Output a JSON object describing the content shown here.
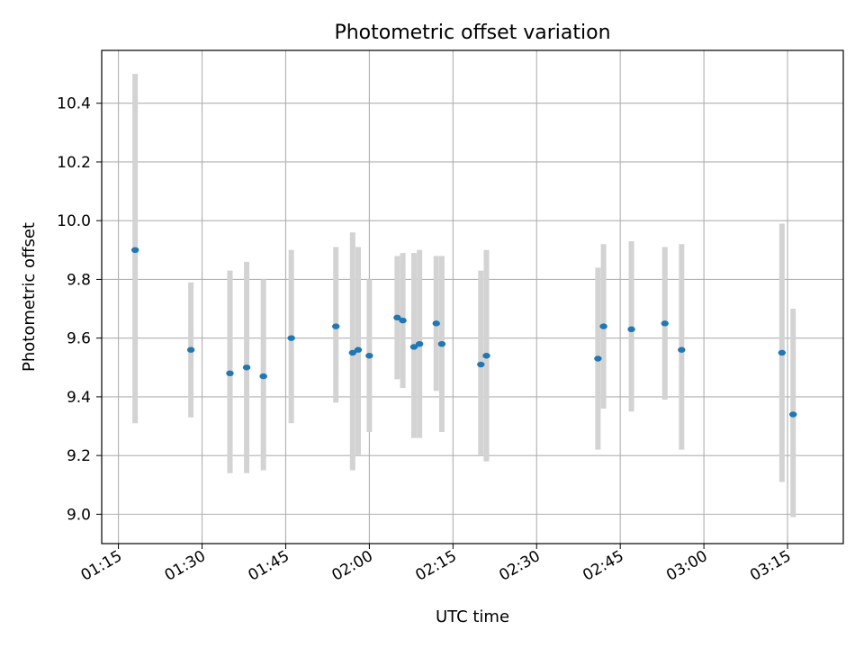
{
  "chart_data": {
    "type": "scatter",
    "title": "Photometric offset variation",
    "xlabel": "UTC time",
    "ylabel": "Photometric offset",
    "x_ticks": [
      "01:15",
      "01:30",
      "01:45",
      "02:00",
      "02:15",
      "02:30",
      "02:45",
      "03:00",
      "03:15"
    ],
    "y_ticks": [
      "9.0",
      "9.2",
      "9.4",
      "9.6",
      "9.8",
      "10.0",
      "10.2",
      "10.4"
    ],
    "xlim": [
      "01:12",
      "03:25"
    ],
    "ylim": [
      8.9,
      10.58
    ],
    "grid": true,
    "colors": {
      "point": "#1f77b4",
      "errorbar": "#d3d3d3",
      "grid": "#b0b0b0"
    },
    "points": [
      {
        "x": "01:18",
        "y": 9.9,
        "ylow": 9.31,
        "yhigh": 10.5
      },
      {
        "x": "01:28",
        "y": 9.56,
        "ylow": 9.33,
        "yhigh": 9.79
      },
      {
        "x": "01:35",
        "y": 9.48,
        "ylow": 9.14,
        "yhigh": 9.83
      },
      {
        "x": "01:38",
        "y": 9.5,
        "ylow": 9.14,
        "yhigh": 9.86
      },
      {
        "x": "01:41",
        "y": 9.47,
        "ylow": 9.15,
        "yhigh": 9.8
      },
      {
        "x": "01:46",
        "y": 9.6,
        "ylow": 9.31,
        "yhigh": 9.9
      },
      {
        "x": "01:54",
        "y": 9.64,
        "ylow": 9.38,
        "yhigh": 9.91
      },
      {
        "x": "01:57",
        "y": 9.55,
        "ylow": 9.15,
        "yhigh": 9.96
      },
      {
        "x": "01:58",
        "y": 9.56,
        "ylow": 9.2,
        "yhigh": 9.91
      },
      {
        "x": "02:00",
        "y": 9.54,
        "ylow": 9.28,
        "yhigh": 9.8
      },
      {
        "x": "02:05",
        "y": 9.67,
        "ylow": 9.46,
        "yhigh": 9.88
      },
      {
        "x": "02:06",
        "y": 9.66,
        "ylow": 9.43,
        "yhigh": 9.89
      },
      {
        "x": "02:08",
        "y": 9.57,
        "ylow": 9.26,
        "yhigh": 9.89
      },
      {
        "x": "02:09",
        "y": 9.58,
        "ylow": 9.26,
        "yhigh": 9.9
      },
      {
        "x": "02:12",
        "y": 9.65,
        "ylow": 9.42,
        "yhigh": 9.88
      },
      {
        "x": "02:13",
        "y": 9.58,
        "ylow": 9.28,
        "yhigh": 9.88
      },
      {
        "x": "02:20",
        "y": 9.51,
        "ylow": 9.2,
        "yhigh": 9.83
      },
      {
        "x": "02:21",
        "y": 9.54,
        "ylow": 9.18,
        "yhigh": 9.9
      },
      {
        "x": "02:41",
        "y": 9.53,
        "ylow": 9.22,
        "yhigh": 9.84
      },
      {
        "x": "02:42",
        "y": 9.64,
        "ylow": 9.36,
        "yhigh": 9.92
      },
      {
        "x": "02:47",
        "y": 9.63,
        "ylow": 9.35,
        "yhigh": 9.93
      },
      {
        "x": "02:53",
        "y": 9.65,
        "ylow": 9.39,
        "yhigh": 9.91
      },
      {
        "x": "02:56",
        "y": 9.56,
        "ylow": 9.22,
        "yhigh": 9.92
      },
      {
        "x": "03:14",
        "y": 9.55,
        "ylow": 9.11,
        "yhigh": 9.99
      },
      {
        "x": "03:16",
        "y": 9.34,
        "ylow": 8.99,
        "yhigh": 9.7
      }
    ]
  }
}
